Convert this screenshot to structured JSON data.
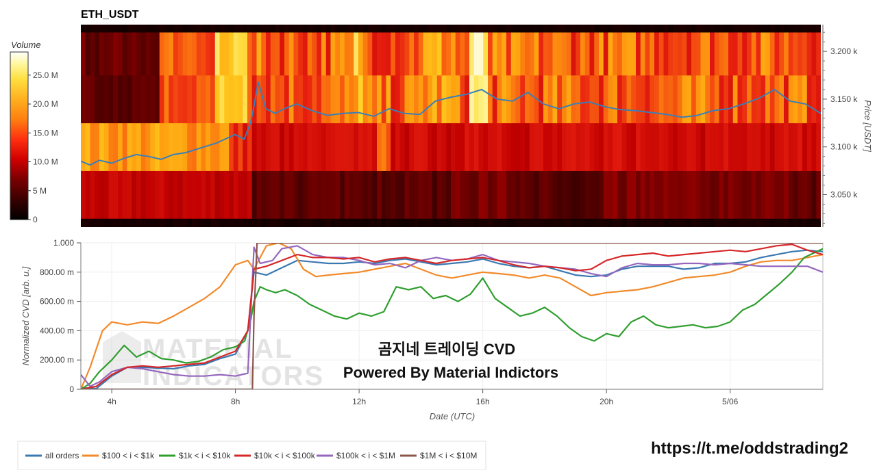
{
  "chart_data": [
    {
      "type": "heatmap",
      "title": "ETH_USDT",
      "colorbar": {
        "label": "Volume",
        "ticks": [
          "0",
          "5 M",
          "10.0 M",
          "15.0 M",
          "20.0 M",
          "25.0 M"
        ],
        "tick_values": [
          0,
          5000000,
          10000000,
          15000000,
          20000000,
          25000000
        ],
        "range": [
          0,
          29000000
        ]
      },
      "colormap": [
        "#000000",
        "#3a0000",
        "#7a0000",
        "#c00000",
        "#e82010",
        "#f86010",
        "#ffa010",
        "#ffd020",
        "#fff080",
        "#ffffff"
      ],
      "ylabel": "Price [USDT]",
      "y_ticks": [
        "3.050 k",
        "3.100 k",
        "3.150 k",
        "3.200 k"
      ],
      "y_tick_values": [
        3050,
        3100,
        3150,
        3200
      ],
      "ylim": [
        3016,
        3228
      ],
      "x_range_hours": [
        3,
        27
      ],
      "price_bands": [
        {
          "low": 3016,
          "high": 3025,
          "level": "black"
        },
        {
          "low": 3025,
          "high": 3075,
          "level": "low"
        },
        {
          "low": 3075,
          "high": 3125,
          "level": "mid"
        },
        {
          "low": 3125,
          "high": 3175,
          "level": "high"
        },
        {
          "low": 3175,
          "high": 3220,
          "level": "high"
        },
        {
          "low": 3220,
          "high": 3228,
          "level": "black"
        }
      ],
      "price_series": {
        "name": "price",
        "color": "#3a7fb8",
        "x": [
          3.0,
          3.3,
          3.6,
          4.0,
          4.4,
          4.8,
          5.2,
          5.6,
          6.0,
          6.4,
          6.8,
          7.0,
          7.4,
          7.8,
          8.0,
          8.3,
          8.5,
          8.6,
          8.75,
          9.0,
          9.3,
          9.6,
          10.0,
          10.5,
          11.0,
          11.5,
          12.0,
          12.5,
          13.0,
          13.5,
          14.0,
          14.5,
          15.0,
          15.5,
          16.0,
          16.5,
          17.0,
          17.5,
          18.0,
          18.5,
          19.0,
          19.5,
          20.0,
          20.5,
          21.0,
          21.5,
          22.0,
          22.5,
          23.0,
          23.5,
          24.0,
          24.5,
          25.0,
          25.5,
          26.0,
          26.5,
          27.0
        ],
        "y": [
          3085,
          3081,
          3086,
          3083,
          3088,
          3092,
          3090,
          3087,
          3092,
          3094,
          3098,
          3100,
          3104,
          3110,
          3113,
          3108,
          3125,
          3140,
          3168,
          3140,
          3135,
          3140,
          3145,
          3138,
          3133,
          3135,
          3136,
          3132,
          3140,
          3135,
          3134,
          3148,
          3152,
          3155,
          3160,
          3150,
          3148,
          3157,
          3145,
          3140,
          3145,
          3147,
          3142,
          3139,
          3138,
          3136,
          3134,
          3131,
          3133,
          3138,
          3140,
          3145,
          3151,
          3160,
          3148,
          3145,
          3135
        ]
      }
    },
    {
      "type": "line",
      "xlabel": "Date (UTC)",
      "ylabel": "Normalized CVD [arb. u.]",
      "ylim": [
        0,
        1000
      ],
      "xlim": [
        3,
        27
      ],
      "x_ticks": [
        {
          "label": "4h",
          "value": 4
        },
        {
          "label": "8h",
          "value": 8
        },
        {
          "label": "12h",
          "value": 12
        },
        {
          "label": "16h",
          "value": 16
        },
        {
          "label": "20h",
          "value": 20
        },
        {
          "label": "5/06",
          "value": 24
        }
      ],
      "y_ticks": [
        {
          "label": "0",
          "value": 0
        },
        {
          "label": "200.00 m",
          "value": 200
        },
        {
          "label": "400.00 m",
          "value": 400
        },
        {
          "label": "600.00 m",
          "value": 600
        },
        {
          "label": "800.00 m",
          "value": 800
        },
        {
          "label": "1.000",
          "value": 1000
        }
      ],
      "series": [
        {
          "name": "all orders",
          "color": "#3a78b0",
          "x": [
            3.0,
            3.5,
            4.0,
            4.5,
            5.0,
            5.5,
            6.0,
            6.5,
            7.0,
            7.5,
            8.0,
            8.4,
            8.6,
            9.0,
            9.5,
            10.0,
            10.5,
            11.0,
            11.5,
            12.0,
            12.5,
            13.0,
            13.5,
            14.0,
            14.5,
            15.0,
            15.5,
            16.0,
            16.5,
            17.0,
            17.5,
            18.0,
            18.5,
            19.0,
            19.5,
            20.0,
            20.5,
            21.0,
            21.5,
            22.0,
            22.5,
            23.0,
            23.5,
            24.0,
            24.5,
            25.0,
            25.5,
            26.0,
            26.5,
            27.0
          ],
          "y": [
            10,
            5,
            90,
            150,
            150,
            145,
            140,
            160,
            170,
            210,
            240,
            400,
            800,
            780,
            830,
            880,
            870,
            860,
            860,
            870,
            860,
            880,
            890,
            870,
            850,
            860,
            870,
            890,
            860,
            840,
            830,
            840,
            810,
            780,
            770,
            780,
            820,
            840,
            840,
            840,
            820,
            830,
            860,
            860,
            870,
            900,
            920,
            940,
            950,
            940
          ]
        },
        {
          "name": "$100 < i < $1k",
          "color": "#f28a2a",
          "x": [
            3.0,
            3.3,
            3.7,
            4.0,
            4.5,
            5.0,
            5.5,
            6.0,
            6.5,
            7.0,
            7.5,
            8.0,
            8.4,
            8.6,
            9.0,
            9.4,
            9.8,
            10.2,
            10.6,
            11.0,
            11.5,
            12.0,
            12.5,
            13.0,
            13.5,
            14.0,
            14.5,
            15.0,
            15.5,
            16.0,
            16.5,
            17.0,
            17.5,
            18.0,
            18.5,
            19.0,
            19.5,
            20.0,
            20.5,
            21.0,
            21.5,
            22.0,
            22.5,
            23.0,
            23.5,
            24.0,
            24.5,
            25.0,
            25.5,
            26.0,
            26.5,
            27.0
          ],
          "y": [
            0,
            150,
            400,
            460,
            440,
            460,
            450,
            500,
            560,
            620,
            700,
            850,
            880,
            820,
            980,
            1000,
            960,
            820,
            770,
            780,
            790,
            800,
            820,
            840,
            860,
            820,
            780,
            760,
            780,
            800,
            790,
            780,
            760,
            780,
            760,
            700,
            640,
            660,
            670,
            680,
            700,
            730,
            760,
            770,
            780,
            800,
            840,
            870,
            880,
            880,
            900,
            920
          ]
        },
        {
          "name": "$1k < i < $10k",
          "color": "#2f9e2f",
          "x": [
            3.0,
            3.3,
            3.6,
            4.0,
            4.4,
            4.8,
            5.2,
            5.6,
            6.0,
            6.4,
            6.8,
            7.2,
            7.6,
            8.0,
            8.3,
            8.5,
            8.6,
            8.8,
            9.0,
            9.3,
            9.6,
            10.0,
            10.4,
            10.8,
            11.2,
            11.6,
            12.0,
            12.4,
            12.8,
            13.2,
            13.6,
            14.0,
            14.4,
            14.8,
            15.2,
            15.6,
            16.0,
            16.4,
            16.8,
            17.2,
            17.6,
            18.0,
            18.4,
            18.8,
            19.2,
            19.6,
            20.0,
            20.4,
            20.8,
            21.2,
            21.6,
            22.0,
            22.4,
            22.8,
            23.2,
            23.6,
            24.0,
            24.4,
            24.8,
            25.2,
            25.6,
            26.0,
            26.4,
            26.8,
            27.0
          ],
          "y": [
            0,
            40,
            120,
            200,
            300,
            220,
            260,
            210,
            200,
            180,
            190,
            220,
            270,
            290,
            330,
            480,
            600,
            700,
            680,
            660,
            680,
            640,
            580,
            540,
            500,
            480,
            520,
            500,
            530,
            700,
            680,
            700,
            620,
            640,
            600,
            650,
            760,
            620,
            560,
            500,
            520,
            560,
            500,
            420,
            360,
            330,
            380,
            360,
            460,
            500,
            440,
            420,
            430,
            440,
            420,
            430,
            460,
            540,
            580,
            650,
            720,
            800,
            900,
            940,
            960
          ]
        },
        {
          "name": "$10k < i < $100k",
          "color": "#d62728",
          "x": [
            3.0,
            3.5,
            4.0,
            4.5,
            5.0,
            5.5,
            6.0,
            6.5,
            7.0,
            7.5,
            8.0,
            8.4,
            8.6,
            9.0,
            9.5,
            10.0,
            10.5,
            11.0,
            11.5,
            12.0,
            12.5,
            13.0,
            13.5,
            14.0,
            14.5,
            15.0,
            15.5,
            16.0,
            16.5,
            17.0,
            17.5,
            18.0,
            18.5,
            19.0,
            19.5,
            20.0,
            20.5,
            21.0,
            21.5,
            22.0,
            22.5,
            23.0,
            23.5,
            24.0,
            24.5,
            25.0,
            25.5,
            26.0,
            26.5,
            27.0
          ],
          "y": [
            0,
            20,
            100,
            150,
            160,
            150,
            160,
            170,
            180,
            220,
            260,
            400,
            820,
            840,
            880,
            920,
            900,
            900,
            890,
            900,
            870,
            890,
            900,
            880,
            860,
            880,
            890,
            900,
            880,
            850,
            830,
            840,
            830,
            810,
            820,
            880,
            910,
            920,
            930,
            910,
            920,
            930,
            940,
            950,
            940,
            960,
            980,
            990,
            950,
            920
          ]
        },
        {
          "name": "$100k < i < $1M",
          "color": "#9467bd",
          "x": [
            3.0,
            3.3,
            3.6,
            4.0,
            4.5,
            5.0,
            5.5,
            6.0,
            6.5,
            7.0,
            7.5,
            8.0,
            8.4,
            8.6,
            8.8,
            9.2,
            9.5,
            10.0,
            10.5,
            11.0,
            11.5,
            12.0,
            12.5,
            13.0,
            13.5,
            14.0,
            14.5,
            15.0,
            15.5,
            16.0,
            16.5,
            17.0,
            17.5,
            18.0,
            18.5,
            19.0,
            19.5,
            20.0,
            20.5,
            21.0,
            21.5,
            22.0,
            22.5,
            23.0,
            23.5,
            24.0,
            24.5,
            25.0,
            25.5,
            26.0,
            26.5,
            27.0
          ],
          "y": [
            100,
            20,
            50,
            120,
            150,
            140,
            120,
            100,
            90,
            90,
            100,
            90,
            110,
            970,
            860,
            880,
            960,
            980,
            920,
            900,
            900,
            880,
            850,
            860,
            830,
            880,
            900,
            880,
            890,
            920,
            880,
            870,
            860,
            840,
            830,
            820,
            790,
            770,
            830,
            860,
            850,
            850,
            860,
            860,
            850,
            860,
            850,
            840,
            840,
            840,
            840,
            800
          ]
        },
        {
          "name": "$1M < i < $10M",
          "color": "#8c564b",
          "x": [
            3.0,
            8.0,
            8.55,
            8.6,
            8.7,
            9.0,
            27.0
          ],
          "y": [
            0,
            0,
            0,
            500,
            1000,
            1000,
            1000
          ]
        }
      ]
    }
  ],
  "overlay_text": {
    "line1": "곰지네 트레이딩 CVD",
    "line2": "Powered By Material Indictors"
  },
  "watermark": {
    "line1": "MATERIAL",
    "line2": "INDICATORS"
  },
  "url": "https://t.me/oddstrading2"
}
